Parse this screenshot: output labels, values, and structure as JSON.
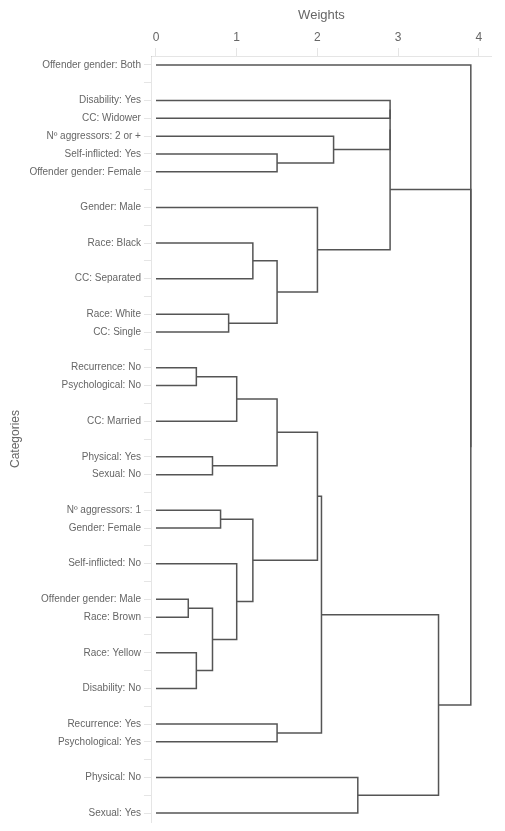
{
  "chart_data": {
    "type": "dendrogram",
    "x_label": "Weights",
    "y_label": "Categories",
    "categories": [
      "Offender gender: Both",
      null,
      "Disability: Yes",
      "CC: Widower",
      "Nº aggressors: 2 or +",
      "Self-inflicted: Yes",
      "Offender gender: Female",
      null,
      "Gender: Male",
      null,
      "Race: Black",
      null,
      "CC: Separated",
      null,
      "Race: White",
      "CC: Single",
      null,
      "Recurrence: No",
      "Psychological: No",
      null,
      "CC: Married",
      null,
      "Physical: Yes",
      "Sexual: No",
      null,
      "Nº aggressors: 1",
      "Gender: Female",
      null,
      "Self-inflicted: No",
      null,
      "Offender gender: Male",
      "Race: Brown",
      null,
      "Race: Yellow",
      null,
      "Disability: No",
      null,
      "Recurrence: Yes",
      "Psychological: Yes",
      null,
      "Physical: No",
      null,
      "Sexual: Yes"
    ],
    "linkage": [
      [
        2,
        3,
        2.9
      ],
      [
        5,
        6,
        1.5
      ],
      [
        4,
        44,
        2.2
      ],
      [
        43,
        45,
        2.9
      ],
      [
        10,
        12,
        1.2
      ],
      [
        14,
        15,
        0.9
      ],
      [
        47,
        48,
        1.5
      ],
      [
        8,
        49,
        2.0
      ],
      [
        46,
        50,
        2.9
      ],
      [
        17,
        18,
        0.5
      ],
      [
        52,
        20,
        1.0
      ],
      [
        22,
        23,
        0.7
      ],
      [
        54,
        53,
        1.5
      ],
      [
        30,
        31,
        0.4
      ],
      [
        33,
        35,
        0.5
      ],
      [
        56,
        57,
        0.7
      ],
      [
        28,
        58,
        1.0
      ],
      [
        25,
        26,
        0.8
      ],
      [
        60,
        59,
        1.2
      ],
      [
        37,
        38,
        1.5
      ],
      [
        55,
        61,
        2.0
      ],
      [
        63,
        62,
        2.05
      ],
      [
        40,
        42,
        2.5
      ],
      [
        64,
        65,
        3.5
      ],
      [
        51,
        66,
        3.9
      ],
      [
        0,
        67,
        3.9
      ]
    ],
    "color": "#555555",
    "xlim": [
      -0.05,
      4.15
    ],
    "xticks": [
      0,
      1,
      2,
      3,
      4
    ],
    "grid": false
  }
}
